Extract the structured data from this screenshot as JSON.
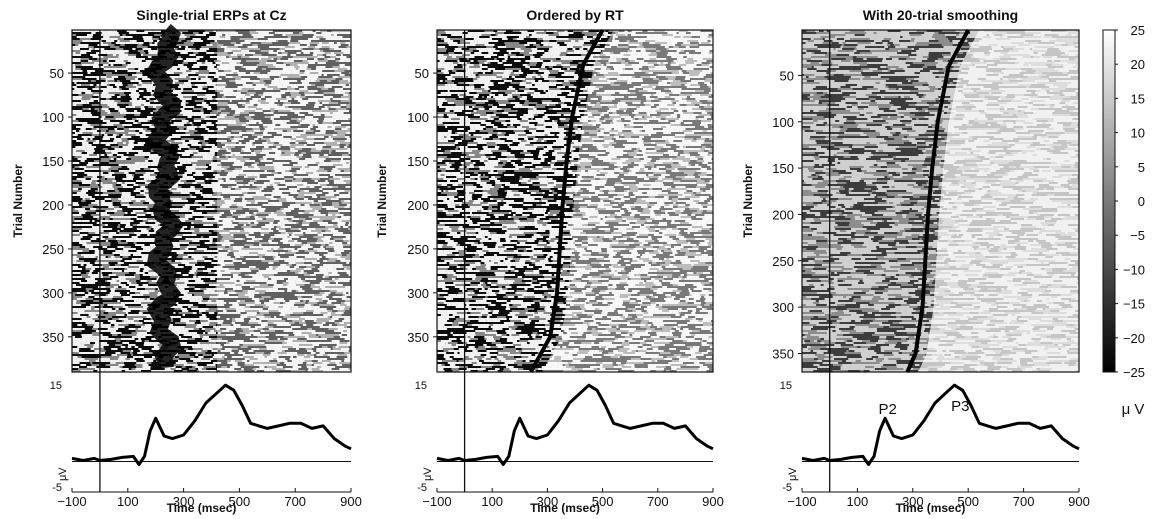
{
  "chart_data": [
    {
      "type": "heatmap",
      "title": "Single-trial ERPs at Cz",
      "ylabel": "Trial Number",
      "xlabel": "Time (msec)",
      "x_ticks": [
        -100,
        100,
        300,
        500,
        700,
        900
      ],
      "y_ticks": [
        50,
        100,
        150,
        200,
        250,
        300,
        350
      ],
      "xlim": [
        -100,
        900
      ],
      "ylim": [
        1,
        390
      ],
      "sorted_by_rt": false,
      "smoothed": false,
      "erp": {
        "ylim": [
          -6,
          17
        ],
        "y_ticks": [
          15,
          -5
        ],
        "y_unit_label": "μV",
        "x": [
          -100,
          -60,
          -20,
          0,
          40,
          80,
          120,
          140,
          160,
          180,
          200,
          230,
          260,
          300,
          340,
          380,
          420,
          450,
          480,
          510,
          540,
          570,
          600,
          640,
          680,
          720,
          760,
          800,
          840,
          880,
          900
        ],
        "y": [
          0.6,
          0.2,
          0.6,
          0.2,
          0.4,
          0.8,
          1.0,
          -0.6,
          1.0,
          6.0,
          8.5,
          5.0,
          4.5,
          5.2,
          8.0,
          11.5,
          13.5,
          15.0,
          14.0,
          11.0,
          7.5,
          7.0,
          6.5,
          7.0,
          7.5,
          7.5,
          6.5,
          7.0,
          4.5,
          3.0,
          2.5
        ]
      }
    },
    {
      "type": "heatmap",
      "title": "Ordered by RT",
      "ylabel": "Trial Number",
      "xlabel": "Time (msec)",
      "x_ticks": [
        -100,
        100,
        300,
        500,
        700,
        900
      ],
      "y_ticks": [
        50,
        100,
        150,
        200,
        250,
        300,
        350
      ],
      "xlim": [
        -100,
        900
      ],
      "ylim": [
        1,
        390
      ],
      "sorted_by_rt": true,
      "smoothed": false,
      "rt_curve": {
        "trial": [
          1,
          40,
          100,
          150,
          200,
          250,
          300,
          350,
          390
        ],
        "rt_ms": [
          500,
          430,
          390,
          370,
          355,
          345,
          335,
          310,
          240
        ]
      },
      "erp": {
        "ylim": [
          -6,
          17
        ],
        "y_ticks": [
          15,
          -5
        ],
        "y_unit_label": "μV",
        "x": [
          -100,
          -60,
          -20,
          0,
          40,
          80,
          120,
          140,
          160,
          180,
          200,
          230,
          260,
          300,
          340,
          380,
          420,
          450,
          480,
          510,
          540,
          570,
          600,
          640,
          680,
          720,
          760,
          800,
          840,
          880,
          900
        ],
        "y": [
          0.6,
          0.2,
          0.6,
          0.2,
          0.4,
          0.8,
          1.0,
          -0.6,
          1.0,
          6.0,
          8.5,
          5.0,
          4.5,
          5.2,
          8.0,
          11.5,
          13.5,
          15.0,
          14.0,
          11.0,
          7.5,
          7.0,
          6.5,
          7.0,
          7.5,
          7.5,
          6.5,
          7.0,
          4.5,
          3.0,
          2.5
        ]
      }
    },
    {
      "type": "heatmap",
      "title": "With 20-trial smoothing",
      "ylabel": "Trial Number",
      "xlabel": "Time (msec)",
      "x_ticks": [
        -100,
        100,
        300,
        500,
        700,
        900
      ],
      "y_ticks": [
        50,
        100,
        150,
        200,
        250,
        300,
        350
      ],
      "xlim": [
        -100,
        900
      ],
      "ylim": [
        1,
        370
      ],
      "sorted_by_rt": true,
      "smoothed": true,
      "rt_curve": {
        "trial": [
          1,
          40,
          100,
          150,
          200,
          250,
          300,
          350,
          370
        ],
        "rt_ms": [
          500,
          430,
          390,
          370,
          355,
          345,
          335,
          310,
          280
        ]
      },
      "colorbar": {
        "ticks": [
          25,
          20,
          15,
          10,
          5,
          0,
          -5,
          -10,
          -15,
          -20,
          -25
        ],
        "range": [
          -25,
          25
        ],
        "unit_label": "μ V"
      },
      "erp": {
        "ylim": [
          -6,
          17
        ],
        "y_ticks": [
          15,
          -5
        ],
        "y_unit_label": "μV",
        "annotations": [
          {
            "text": "P2",
            "x": 220,
            "y": 8.5
          },
          {
            "text": "P3",
            "x": 450,
            "y": 15.0
          }
        ],
        "x": [
          -100,
          -60,
          -20,
          0,
          40,
          80,
          120,
          140,
          160,
          180,
          200,
          230,
          260,
          300,
          340,
          380,
          420,
          450,
          480,
          510,
          540,
          570,
          600,
          640,
          680,
          720,
          760,
          800,
          840,
          880,
          900
        ],
        "y": [
          0.6,
          0.2,
          0.6,
          0.2,
          0.4,
          0.8,
          1.0,
          -0.6,
          1.0,
          6.0,
          8.5,
          5.0,
          4.5,
          5.2,
          8.0,
          11.5,
          13.5,
          15.0,
          14.0,
          11.0,
          7.5,
          7.0,
          6.5,
          7.0,
          7.5,
          7.5,
          6.5,
          7.0,
          4.5,
          3.0,
          2.5
        ]
      }
    }
  ],
  "colors": {
    "ink": "#111111",
    "paper": "#ffffff"
  }
}
